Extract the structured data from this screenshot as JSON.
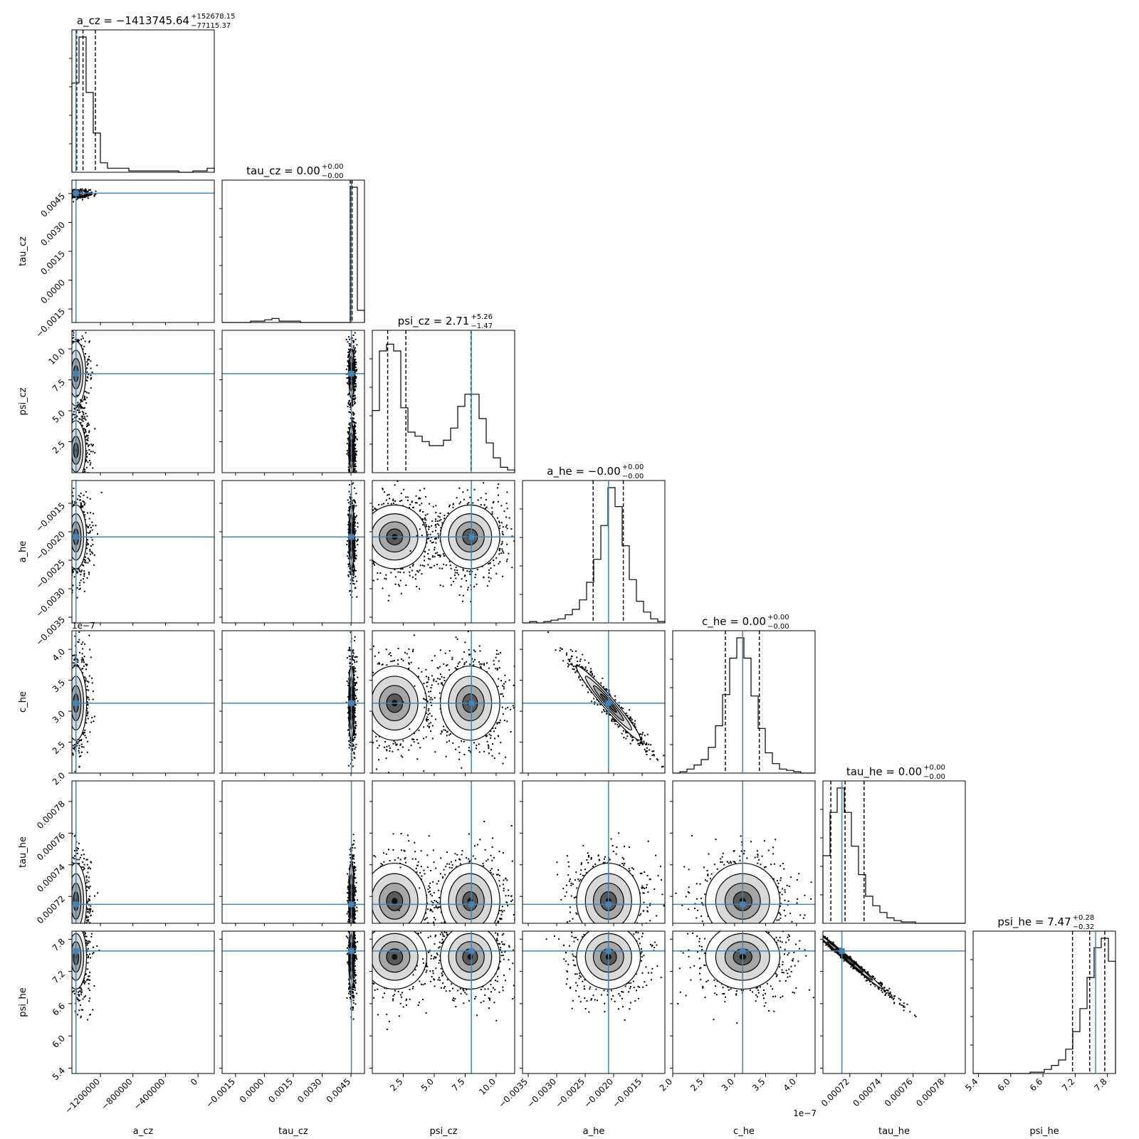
{
  "chart_data": {
    "type": "corner",
    "truth_color": "#4682b4",
    "parameters": [
      {
        "name": "a_cz",
        "title": "a_cz = −1413745.64",
        "title_sup": "+152678.15",
        "title_sub": "−77115.37",
        "range": [
          -1550000,
          200000
        ],
        "ticks": [
          -1200000,
          -800000,
          -400000,
          0
        ],
        "tick_labels": [
          "−1200000",
          "−800000",
          "−400000",
          "0"
        ],
        "median": -1413745.64,
        "q16": -1490861.01,
        "q84": -1261067.49,
        "truth": -1500000,
        "hist": [
          0.66,
          1.0,
          0.59,
          0.29,
          0.07,
          0.03,
          0.03,
          0.03,
          0.01,
          0.01,
          0.01,
          0.01,
          0.01,
          0.01,
          0.01,
          0.0,
          0.0,
          0.01,
          0.01,
          0.03
        ]
      },
      {
        "name": "tau_cz",
        "title": "tau_cz = 0.00",
        "title_sup": "+0.00",
        "title_sub": "−0.00",
        "range": [
          -0.0022,
          0.0052
        ],
        "ticks": [
          -0.0015,
          0.0,
          0.0015,
          0.003,
          0.0045
        ],
        "tick_labels": [
          "−0.0015",
          "0.0000",
          "0.0015",
          "0.0030",
          "0.0045"
        ],
        "median": 0.00452,
        "q16": 0.00446,
        "q84": 0.00456,
        "truth": 0.00452,
        "hist": [
          0.0,
          0.0,
          0.0,
          0.0,
          0.01,
          0.01,
          0.02,
          0.03,
          0.01,
          0.01,
          0.01,
          0.0,
          0.0,
          0.0,
          0.0,
          0.0,
          0.0,
          0.0,
          1.0,
          0.09
        ]
      },
      {
        "name": "psi_cz",
        "title": "psi_cz = 2.71",
        "title_sup": "+5.26",
        "title_sub": "−1.47",
        "range": [
          0.0,
          11.5
        ],
        "ticks": [
          2.5,
          5.0,
          7.5,
          10.0
        ],
        "tick_labels": [
          "2.5",
          "5.0",
          "7.5",
          "10.0"
        ],
        "median": 2.71,
        "q16": 1.24,
        "q84": 7.97,
        "truth": 8.0,
        "hist": [
          0.46,
          0.9,
          0.95,
          0.9,
          0.48,
          0.3,
          0.27,
          0.23,
          0.2,
          0.2,
          0.24,
          0.33,
          0.49,
          0.58,
          0.58,
          0.4,
          0.22,
          0.11,
          0.04,
          0.02
        ]
      },
      {
        "name": "a_he",
        "title": "a_he = −0.00",
        "title_sup": "+0.00",
        "title_sub": "−0.00",
        "range": [
          -0.0036,
          -0.0011
        ],
        "ticks": [
          -0.0035,
          -0.003,
          -0.0025,
          -0.002,
          -0.0015
        ],
        "tick_labels": [
          "−0.0035",
          "−0.0030",
          "−0.0025",
          "−0.0020",
          "−0.0015"
        ],
        "median": -0.00209,
        "q16": -0.00236,
        "q84": -0.00183,
        "truth": -0.00209,
        "hist": [
          0.0,
          0.01,
          0.0,
          0.01,
          0.02,
          0.03,
          0.06,
          0.1,
          0.17,
          0.3,
          0.47,
          0.72,
          1.0,
          0.86,
          0.57,
          0.32,
          0.16,
          0.08,
          0.03,
          0.01
        ]
      },
      {
        "name": "c_he",
        "title": "c_he = 0.00",
        "title_sup": "+0.00",
        "title_sub": "−0.00",
        "range": [
          2e-07,
          4.3e-07
        ],
        "ticks": [
          2e-07,
          2.5e-07,
          3e-07,
          3.5e-07,
          4e-07
        ],
        "tick_labels": [
          "2.0",
          "2.5",
          "3.0",
          "3.5",
          "4.0"
        ],
        "offset_text": "1e−7",
        "median": 3.13e-07,
        "q16": 2.85e-07,
        "q84": 3.4e-07,
        "truth": 3.13e-07,
        "hist": [
          0.0,
          0.01,
          0.03,
          0.06,
          0.1,
          0.19,
          0.35,
          0.58,
          0.85,
          1.0,
          0.85,
          0.57,
          0.33,
          0.15,
          0.07,
          0.03,
          0.02,
          0.01,
          0.0,
          0.0
        ]
      },
      {
        "name": "tau_he",
        "title": "tau_he = 0.00",
        "title_sup": "+0.00",
        "title_sub": "−0.00",
        "range": [
          0.000703,
          0.000793
        ],
        "ticks": [
          0.00072,
          0.00074,
          0.00076,
          0.00078
        ],
        "tick_labels": [
          "0.00072",
          "0.00074",
          "0.00076",
          "0.00078"
        ],
        "median": 0.000717,
        "q16": 0.000708,
        "q84": 0.000729,
        "truth": 0.000715,
        "hist": [
          0.5,
          0.82,
          1.0,
          0.82,
          0.57,
          0.36,
          0.2,
          0.13,
          0.08,
          0.04,
          0.02,
          0.01,
          0.01,
          0.0,
          0.0,
          0.0,
          0.0,
          0.0,
          0.0,
          0.0
        ]
      },
      {
        "name": "psi_he",
        "title": "psi_he = 7.47",
        "title_sup": "+0.28",
        "title_sub": "−0.32",
        "range": [
          5.3,
          7.95
        ],
        "ticks": [
          5.4,
          6.0,
          6.6,
          7.2,
          7.8
        ],
        "tick_labels": [
          "5.4",
          "6.0",
          "6.6",
          "7.2",
          "7.8"
        ],
        "median": 7.47,
        "q16": 7.15,
        "q84": 7.75,
        "truth": 7.58,
        "hist": [
          0.0,
          0.0,
          0.0,
          0.0,
          0.0,
          0.0,
          0.0,
          0.0,
          0.01,
          0.01,
          0.03,
          0.06,
          0.1,
          0.18,
          0.31,
          0.48,
          0.71,
          0.93,
          1.0,
          0.83
        ]
      }
    ],
    "pairs": [
      {
        "i": 1,
        "j": 0,
        "centers": [
          [
            -1500000,
            0.00452
          ]
        ],
        "spread": [
          [
            60000,
            8e-05
          ]
        ],
        "corr": [
          0
        ]
      },
      {
        "i": 2,
        "j": 0,
        "centers": [
          [
            -1500000,
            8.0
          ],
          [
            -1500000,
            1.8
          ]
        ],
        "spread": [
          [
            60000,
            1.3
          ],
          [
            60000,
            1.2
          ]
        ],
        "corr": [
          0,
          0
        ]
      },
      {
        "i": 3,
        "j": 0,
        "centers": [
          [
            -1500000,
            -0.00209
          ]
        ],
        "spread": [
          [
            65000,
            0.00028
          ]
        ],
        "corr": [
          0
        ]
      },
      {
        "i": 4,
        "j": 0,
        "centers": [
          [
            -1500000,
            3.13e-07
          ]
        ],
        "spread": [
          [
            65000,
            3e-08
          ]
        ],
        "corr": [
          0
        ]
      },
      {
        "i": 5,
        "j": 0,
        "centers": [
          [
            -1500000,
            0.000717
          ]
        ],
        "spread": [
          [
            65000,
            1.2e-05
          ]
        ],
        "corr": [
          0
        ]
      },
      {
        "i": 6,
        "j": 0,
        "centers": [
          [
            -1500000,
            7.47
          ]
        ],
        "spread": [
          [
            65000,
            0.3
          ]
        ],
        "corr": [
          0
        ]
      },
      {
        "i": 2,
        "j": 1,
        "centers": [
          [
            0.00452,
            8.0
          ],
          [
            0.00452,
            1.8
          ]
        ],
        "spread": [
          [
            7e-05,
            1.0
          ],
          [
            7e-05,
            1.0
          ]
        ],
        "corr": [
          0,
          0
        ]
      },
      {
        "i": 3,
        "j": 1,
        "centers": [
          [
            0.00452,
            -0.00209
          ]
        ],
        "spread": [
          [
            7e-05,
            0.00028
          ]
        ],
        "corr": [
          0
        ]
      },
      {
        "i": 4,
        "j": 1,
        "centers": [
          [
            0.00452,
            3.13e-07
          ]
        ],
        "spread": [
          [
            7e-05,
            3e-08
          ]
        ],
        "corr": [
          0
        ]
      },
      {
        "i": 5,
        "j": 1,
        "centers": [
          [
            0.00452,
            0.000717
          ]
        ],
        "spread": [
          [
            7e-05,
            1.2e-05
          ]
        ],
        "corr": [
          0
        ]
      },
      {
        "i": 6,
        "j": 1,
        "centers": [
          [
            0.00452,
            7.47
          ]
        ],
        "spread": [
          [
            7e-05,
            0.3
          ]
        ],
        "corr": [
          0
        ]
      },
      {
        "i": 3,
        "j": 2,
        "centers": [
          [
            1.8,
            -0.00209
          ],
          [
            7.9,
            -0.00209
          ]
        ],
        "spread": [
          [
            1.3,
            0.00028
          ],
          [
            1.2,
            0.00028
          ]
        ],
        "corr": [
          0,
          0
        ]
      },
      {
        "i": 4,
        "j": 2,
        "centers": [
          [
            1.8,
            3.13e-07
          ],
          [
            7.9,
            3.13e-07
          ]
        ],
        "spread": [
          [
            1.3,
            3e-08
          ],
          [
            1.2,
            3e-08
          ]
        ],
        "corr": [
          0,
          0
        ]
      },
      {
        "i": 5,
        "j": 2,
        "centers": [
          [
            1.8,
            0.000717
          ],
          [
            7.9,
            0.000717
          ]
        ],
        "spread": [
          [
            1.3,
            1.2e-05
          ],
          [
            1.2,
            1.2e-05
          ]
        ],
        "corr": [
          0,
          0
        ]
      },
      {
        "i": 6,
        "j": 2,
        "centers": [
          [
            1.8,
            7.47
          ],
          [
            7.9,
            7.47
          ]
        ],
        "spread": [
          [
            1.3,
            0.3
          ],
          [
            1.2,
            0.3
          ]
        ],
        "corr": [
          0,
          0
        ]
      },
      {
        "i": 4,
        "j": 3,
        "centers": [
          [
            -0.00209,
            3.13e-07
          ]
        ],
        "spread": [
          [
            0.00028,
            3e-08
          ]
        ],
        "corr": [
          -0.97
        ]
      },
      {
        "i": 5,
        "j": 3,
        "centers": [
          [
            -0.00209,
            0.000717
          ]
        ],
        "spread": [
          [
            0.00028,
            1.2e-05
          ]
        ],
        "corr": [
          0
        ]
      },
      {
        "i": 6,
        "j": 3,
        "centers": [
          [
            -0.00209,
            7.47
          ]
        ],
        "spread": [
          [
            0.00028,
            0.3
          ]
        ],
        "corr": [
          0
        ]
      },
      {
        "i": 5,
        "j": 4,
        "centers": [
          [
            3.13e-07,
            0.000717
          ]
        ],
        "spread": [
          [
            3e-08,
            1.2e-05
          ]
        ],
        "corr": [
          0
        ]
      },
      {
        "i": 6,
        "j": 4,
        "centers": [
          [
            3.13e-07,
            7.47
          ]
        ],
        "spread": [
          [
            3e-08,
            0.3
          ]
        ],
        "corr": [
          0
        ]
      },
      {
        "i": 6,
        "j": 5,
        "centers": [
          [
            0.000717,
            7.47
          ]
        ],
        "spread": [
          [
            1.2e-05,
            0.3
          ]
        ],
        "corr": [
          -0.995
        ]
      }
    ]
  }
}
